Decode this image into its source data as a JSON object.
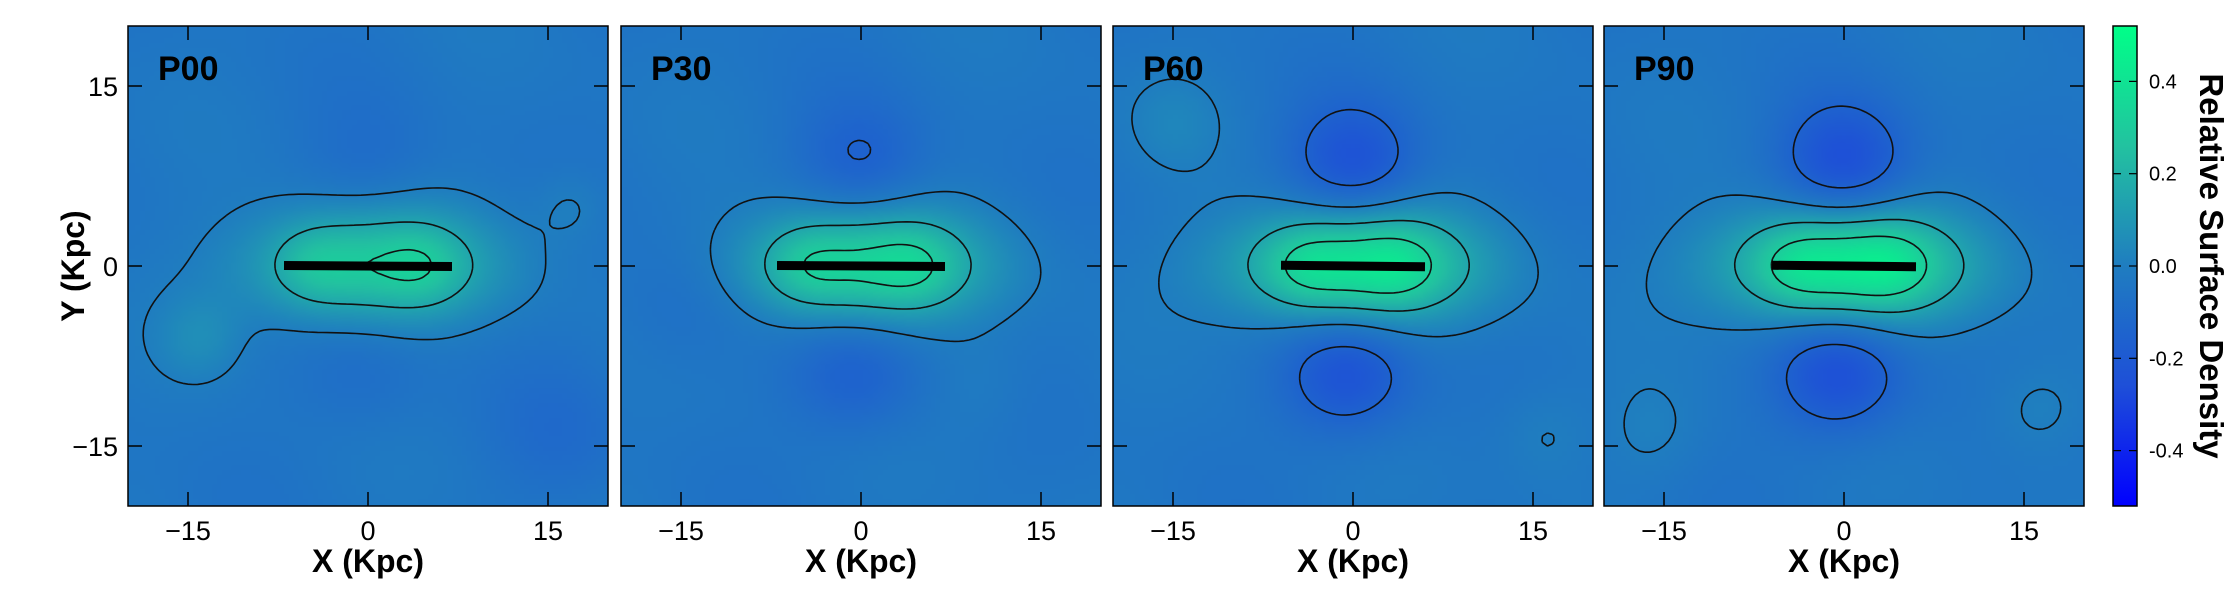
{
  "chart_data": {
    "type": "heatmap",
    "panels": [
      {
        "label": "P00",
        "xlabel": "X (Kpc)",
        "ylabel": "Y (Kpc)",
        "bar_half_length": 7,
        "bar_angle_deg": -0.3,
        "lobe_depth": 0.05,
        "center_peak": 0.32,
        "blobs": [
          [
            -14,
            -6,
            0.08,
            2.5
          ],
          [
            17,
            5,
            0.06,
            2.2
          ],
          [
            16,
            -14,
            -0.05,
            4
          ]
        ]
      },
      {
        "label": "P30",
        "xlabel": "X (Kpc)",
        "ylabel": "",
        "bar_half_length": 7,
        "bar_angle_deg": -0.3,
        "lobe_depth": 0.12,
        "center_peak": 0.36,
        "blobs": [
          [
            -15,
            -3,
            -0.06,
            4
          ],
          [
            10,
            -10,
            0.04,
            3
          ]
        ]
      },
      {
        "label": "P60",
        "xlabel": "X (Kpc)",
        "ylabel": "",
        "bar_half_length": 6,
        "bar_angle_deg": -0.6,
        "lobe_depth": 0.2,
        "center_peak": 0.42,
        "blobs": [
          [
            16,
            -14,
            0.06,
            3
          ],
          [
            -15,
            12,
            0.05,
            3
          ]
        ]
      },
      {
        "label": "P90",
        "xlabel": "X (Kpc)",
        "ylabel": "",
        "bar_half_length": 6,
        "bar_angle_deg": -0.6,
        "lobe_depth": 0.22,
        "center_peak": 0.45,
        "blobs": [
          [
            16,
            -12,
            0.07,
            3
          ],
          [
            -16,
            -14,
            0.05,
            3
          ]
        ]
      }
    ],
    "xlim": [
      -20,
      20
    ],
    "ylim": [
      -20,
      20
    ],
    "xticks": [
      -15,
      0,
      15
    ],
    "xtick_labels": [
      "−15",
      "0",
      "15"
    ],
    "yticks": [
      15,
      0,
      -15
    ],
    "ytick_labels": [
      "15",
      "0",
      "−15"
    ],
    "colorbar": {
      "label": "Relative Surface Density",
      "range": [
        -0.52,
        0.52
      ],
      "ticks": [
        0.4,
        0.2,
        0.0,
        -0.2,
        -0.4
      ],
      "tick_labels": [
        "0.4",
        "0.2",
        "0.0",
        "-0.2",
        "-0.4"
      ],
      "colors": [
        "#0000ff",
        "#1e4fd8",
        "#1f7dc0",
        "#22c2a0",
        "#00ff88"
      ]
    },
    "contour_levels": [
      -0.3,
      -0.15,
      0.0,
      0.15,
      0.3
    ],
    "contour_styles": [
      "dashed",
      "dashed",
      "solid",
      "solid",
      "solid"
    ],
    "legend": "none",
    "grid": false
  }
}
